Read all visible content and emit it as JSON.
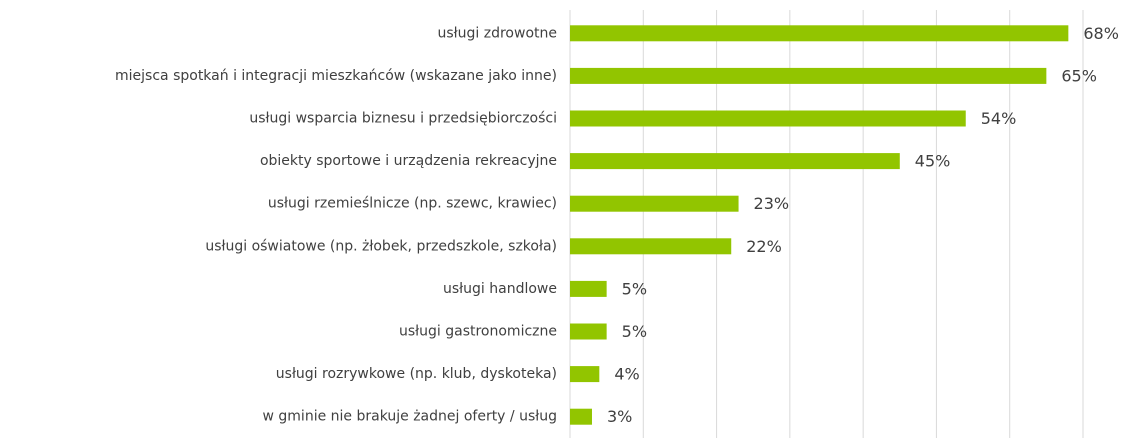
{
  "chart_data": {
    "type": "bar",
    "orientation": "horizontal",
    "categories": [
      "usługi zdrowotne",
      "miejsca spotkań i integracji mieszkańców (wskazane jako inne)",
      "usługi wsparcia biznesu i przedsiębiorczości",
      "obiekty sportowe i urządzenia rekreacyjne",
      "usługi rzemieślnicze (np. szewc, krawiec)",
      "usługi oświatowe (np. żłobek, przedszkole, szkoła)",
      "usługi handlowe",
      "usługi gastronomiczne",
      "usługi rozrywkowe (np. klub, dyskoteka)",
      "w gminie nie brakuje żadnej oferty / usług"
    ],
    "values": [
      68,
      65,
      54,
      45,
      23,
      22,
      5,
      5,
      4,
      3
    ],
    "value_labels": [
      "68%",
      "65%",
      "54%",
      "45%",
      "23%",
      "22%",
      "5%",
      "5%",
      "4%",
      "3%"
    ],
    "color": "#92c500",
    "xlim": [
      0,
      70
    ],
    "xticks": [
      0,
      10,
      20,
      30,
      40,
      50,
      60,
      70
    ],
    "grid": true
  }
}
